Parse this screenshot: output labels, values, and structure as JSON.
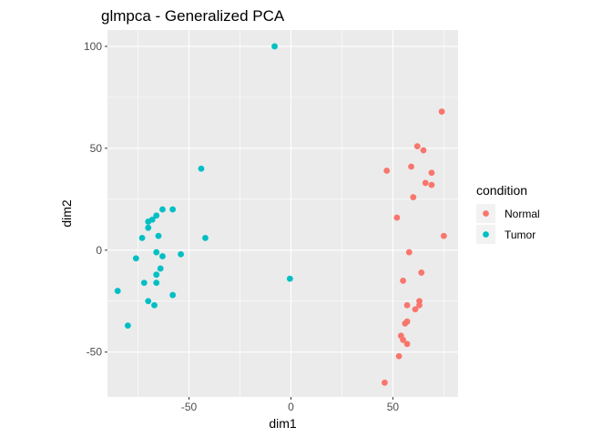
{
  "chart_data": {
    "type": "scatter",
    "title": "glmpca - Generalized PCA",
    "xlabel": "dim1",
    "ylabel": "dim2",
    "xlim": [
      -90,
      82
    ],
    "ylim": [
      -72,
      108
    ],
    "x_ticks": [
      -50,
      0,
      50
    ],
    "y_ticks": [
      -50,
      0,
      50,
      100
    ],
    "grid": true,
    "legend": {
      "title": "condition",
      "position": "right"
    },
    "series": [
      {
        "name": "Normal",
        "color": "#F8766D",
        "points": [
          [
            74,
            68
          ],
          [
            62,
            51
          ],
          [
            65,
            49
          ],
          [
            47,
            39
          ],
          [
            59,
            41
          ],
          [
            69,
            38
          ],
          [
            66,
            33
          ],
          [
            69,
            32
          ],
          [
            60,
            26
          ],
          [
            52,
            16
          ],
          [
            75,
            7
          ],
          [
            58,
            -1
          ],
          [
            64,
            -11
          ],
          [
            55,
            -15
          ],
          [
            63,
            -25
          ],
          [
            63,
            -27
          ],
          [
            57,
            -27
          ],
          [
            61,
            -29
          ],
          [
            57,
            -35
          ],
          [
            56,
            -36
          ],
          [
            54,
            -42
          ],
          [
            55,
            -44
          ],
          [
            57,
            -46
          ],
          [
            53,
            -52
          ],
          [
            46,
            -65
          ]
        ]
      },
      {
        "name": "Tumor",
        "color": "#00BFC4",
        "points": [
          [
            -8,
            100
          ],
          [
            -44,
            40
          ],
          [
            -63,
            20
          ],
          [
            -58,
            20
          ],
          [
            -66,
            17
          ],
          [
            -68,
            15
          ],
          [
            -70,
            14
          ],
          [
            -70,
            11
          ],
          [
            -65,
            7
          ],
          [
            -73,
            6
          ],
          [
            -42,
            6
          ],
          [
            -66,
            -1
          ],
          [
            -54,
            -2
          ],
          [
            -63,
            -3
          ],
          [
            -76,
            -4
          ],
          [
            -64,
            -9
          ],
          [
            -66,
            -12
          ],
          [
            -72,
            -16
          ],
          [
            -66,
            -16
          ],
          [
            -0.5,
            -14
          ],
          [
            -85,
            -20
          ],
          [
            -58,
            -22
          ],
          [
            -70,
            -25
          ],
          [
            -67,
            -27
          ],
          [
            -80,
            -37
          ]
        ]
      }
    ]
  }
}
